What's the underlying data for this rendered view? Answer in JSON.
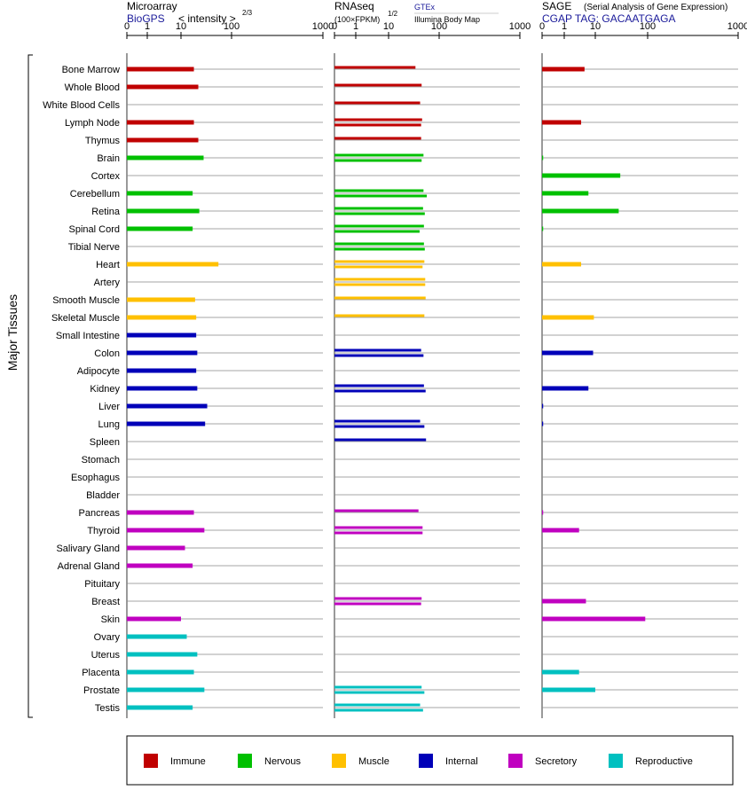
{
  "colors": {
    "Immune": "#c00000",
    "Nervous": "#00c000",
    "Muscle": "#ffc000",
    "Internal": "#0000b8",
    "Secretory": "#c000c0",
    "Reproductive": "#00c0c0"
  },
  "side_label": "Major Tissues",
  "panels": [
    {
      "key": "microarray",
      "title": "Microarray",
      "subtitle": "BioGPS",
      "note": "< intensity >",
      "note_sup": "2/3"
    },
    {
      "key": "rnaseq",
      "title": "RNAseq",
      "subtitle": "(100×FPKM)",
      "subtitle_sup": "1/2",
      "note": "GTEx",
      "note2": "Illumina Body Map"
    },
    {
      "key": "sage",
      "title": "SAGE",
      "note": "(Serial Analysis of Gene Expression)",
      "subtitle": "CGAP TAG: GACAATGAGA"
    }
  ],
  "legend": [
    "Immune",
    "Nervous",
    "Muscle",
    "Internal",
    "Secretory",
    "Reproductive"
  ],
  "chart_data": {
    "type": "bar",
    "x_scale": "symlog",
    "xlim": [
      0,
      1000
    ],
    "x_ticks": [
      0,
      1,
      10,
      100,
      1000
    ],
    "categories": [
      "Bone Marrow",
      "Whole Blood",
      "White Blood Cells",
      "Lymph Node",
      "Thymus",
      "Brain",
      "Cortex",
      "Cerebellum",
      "Retina",
      "Spinal Cord",
      "Tibial Nerve",
      "Heart",
      "Artery",
      "Smooth Muscle",
      "Skeletal Muscle",
      "Small Intestine",
      "Colon",
      "Adipocyte",
      "Kidney",
      "Liver",
      "Lung",
      "Spleen",
      "Stomach",
      "Esophagus",
      "Bladder",
      "Pancreas",
      "Thyroid",
      "Salivary Gland",
      "Adrenal Gland",
      "Pituitary",
      "Breast",
      "Skin",
      "Ovary",
      "Uterus",
      "Placenta",
      "Prostate",
      "Testis"
    ],
    "groups": [
      "Immune",
      "Immune",
      "Immune",
      "Immune",
      "Immune",
      "Nervous",
      "Nervous",
      "Nervous",
      "Nervous",
      "Nervous",
      "Nervous",
      "Muscle",
      "Muscle",
      "Muscle",
      "Muscle",
      "Internal",
      "Internal",
      "Internal",
      "Internal",
      "Internal",
      "Internal",
      "Internal",
      "Internal",
      "Internal",
      "Internal",
      "Secretory",
      "Secretory",
      "Secretory",
      "Secretory",
      "Secretory",
      "Secretory",
      "Secretory",
      "Reproductive",
      "Reproductive",
      "Reproductive",
      "Reproductive",
      "Reproductive"
    ],
    "series": [
      {
        "name": "Microarray",
        "values": [
          18,
          22,
          null,
          18,
          22,
          28,
          null,
          17,
          23,
          17,
          null,
          55,
          null,
          19,
          20,
          20,
          21,
          20,
          21,
          33,
          30,
          null,
          null,
          null,
          null,
          18,
          29,
          12,
          17,
          null,
          null,
          10,
          13,
          21,
          18,
          29,
          17
        ]
      },
      {
        "name": "GTEx",
        "values": [
          null,
          null,
          null,
          null,
          null,
          45,
          null,
          null,
          null,
          null,
          null,
          47,
          null,
          null,
          null,
          null,
          null,
          null,
          null,
          null,
          null,
          null,
          null,
          null,
          null,
          null,
          null,
          null,
          null,
          null,
          null,
          null,
          null,
          null,
          null,
          null,
          null
        ]
      },
      {
        "name": "RNAseq",
        "values": [
          [
            34
          ],
          [
            45
          ],
          [
            42
          ],
          [
            46,
            44
          ],
          [
            44
          ],
          [
            49
          ],
          [
            null
          ],
          [
            49,
            57
          ],
          [
            48,
            52
          ],
          [
            50,
            41
          ],
          [
            50,
            52
          ],
          [
            51,
            39
          ],
          [
            53,
            53
          ],
          [
            54
          ],
          [
            51
          ],
          [
            null
          ],
          [
            44,
            49
          ],
          [
            null
          ],
          [
            50,
            54
          ],
          [
            null
          ],
          [
            42,
            51
          ],
          [
            55
          ],
          [
            null
          ],
          [
            null
          ],
          [
            null
          ],
          [
            39
          ],
          [
            47,
            47
          ],
          [
            null
          ],
          [
            null
          ],
          [
            null
          ],
          [
            45,
            44
          ],
          [
            null
          ],
          [
            null
          ],
          [
            null
          ],
          [
            null
          ],
          [
            45,
            51
          ],
          [
            42,
            48
          ]
        ]
      },
      {
        "name": "SAGE",
        "values": [
          4.5,
          null,
          null,
          3.5,
          null,
          0.05,
          30,
          6,
          28,
          0.05,
          null,
          3.5,
          null,
          null,
          9,
          null,
          8.5,
          null,
          6,
          0.05,
          0.05,
          null,
          null,
          null,
          null,
          0.05,
          3,
          null,
          null,
          null,
          5,
          90,
          null,
          null,
          3,
          10,
          null
        ]
      }
    ]
  }
}
